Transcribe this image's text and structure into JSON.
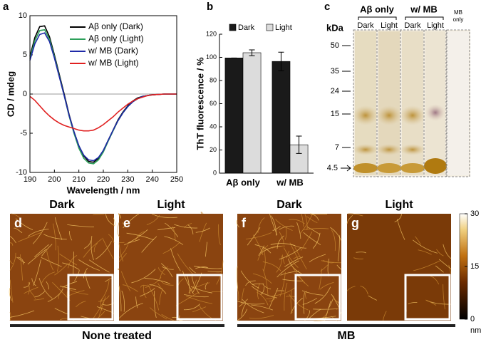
{
  "chart_data": [
    {
      "type": "line",
      "panel": "a",
      "xlabel": "Wavelength / nm",
      "ylabel": "CD / mdeg",
      "x": [
        190,
        192,
        194,
        196,
        198,
        200,
        202,
        204,
        206,
        208,
        210,
        212,
        214,
        216,
        218,
        220,
        222,
        224,
        226,
        228,
        230,
        232,
        234,
        236,
        238,
        240,
        245,
        250
      ],
      "xlim": [
        190,
        250
      ],
      "xticks": [
        190,
        200,
        210,
        220,
        230,
        240,
        250
      ],
      "ylim": [
        -10,
        10
      ],
      "yticks": [
        -10,
        -5,
        0,
        5,
        10
      ],
      "series": [
        {
          "name": "Aβ only (Dark)",
          "color": "#000000",
          "values": [
            4.8,
            7.2,
            8.6,
            8.7,
            7.3,
            5.0,
            2.5,
            0.0,
            -2.6,
            -4.8,
            -6.6,
            -7.9,
            -8.6,
            -8.7,
            -8.2,
            -7.2,
            -5.9,
            -4.6,
            -3.3,
            -2.3,
            -1.5,
            -0.9,
            -0.5,
            -0.3,
            -0.2,
            -0.1,
            0.0,
            0.0
          ]
        },
        {
          "name": "Aβ only (Light)",
          "color": "#2ca05a",
          "values": [
            4.5,
            6.8,
            8.1,
            8.2,
            7.0,
            4.8,
            2.3,
            -0.2,
            -2.8,
            -5.0,
            -6.9,
            -8.2,
            -8.8,
            -8.9,
            -8.4,
            -7.4,
            -6.0,
            -4.7,
            -3.4,
            -2.4,
            -1.6,
            -1.0,
            -0.6,
            -0.3,
            -0.2,
            -0.1,
            0.0,
            0.0
          ]
        },
        {
          "name": "w/ MB (Dark)",
          "color": "#1f2aa8",
          "values": [
            4.3,
            6.4,
            7.6,
            7.8,
            6.7,
            4.6,
            2.2,
            -0.2,
            -2.7,
            -4.8,
            -6.6,
            -7.8,
            -8.4,
            -8.5,
            -8.1,
            -7.2,
            -5.9,
            -4.6,
            -3.4,
            -2.4,
            -1.6,
            -1.0,
            -0.6,
            -0.3,
            -0.2,
            -0.1,
            0.0,
            0.0
          ]
        },
        {
          "name": "w/ MB (Light)",
          "color": "#e02020",
          "values": [
            -0.3,
            -0.8,
            -1.5,
            -2.2,
            -2.8,
            -3.3,
            -3.7,
            -4.0,
            -4.2,
            -4.4,
            -4.6,
            -4.7,
            -4.7,
            -4.6,
            -4.3,
            -3.9,
            -3.4,
            -2.9,
            -2.3,
            -1.8,
            -1.3,
            -0.9,
            -0.6,
            -0.4,
            -0.2,
            -0.1,
            0.0,
            0.0
          ]
        }
      ]
    },
    {
      "type": "bar",
      "panel": "b",
      "ylabel": "ThT fluorescence / %",
      "categories": [
        "Aβ only",
        "w/ MB"
      ],
      "ylim": [
        0,
        120
      ],
      "yticks": [
        0,
        20,
        40,
        60,
        80,
        100,
        120
      ],
      "series": [
        {
          "name": "Dark",
          "color": "#1a1a1a",
          "values": [
            99.5,
            96.5
          ],
          "errors": [
            0,
            8
          ]
        },
        {
          "name": "Light",
          "color": "#dcdcdc",
          "values": [
            104,
            24.5
          ],
          "errors": [
            2.5,
            7.5
          ]
        }
      ]
    }
  ],
  "gel": {
    "panel": "c",
    "groups": [
      "Aβ only",
      "w/ MB"
    ],
    "lanes": [
      "Dark",
      "Light",
      "Dark",
      "Light"
    ],
    "mb_only": [
      "MB",
      "only"
    ],
    "unit": "kDa",
    "markers": [
      "50",
      "35",
      "24",
      "15",
      "7",
      "4.5"
    ]
  },
  "afm": {
    "panels": [
      {
        "panel": "d",
        "title": "Dark"
      },
      {
        "panel": "e",
        "title": "Light"
      },
      {
        "panel": "f",
        "title": "Dark"
      },
      {
        "panel": "g",
        "title": "Light"
      }
    ],
    "groups": [
      "None treated",
      "MB"
    ],
    "colorbar": {
      "ticks": [
        30,
        15,
        0
      ],
      "unit": "nm"
    }
  }
}
